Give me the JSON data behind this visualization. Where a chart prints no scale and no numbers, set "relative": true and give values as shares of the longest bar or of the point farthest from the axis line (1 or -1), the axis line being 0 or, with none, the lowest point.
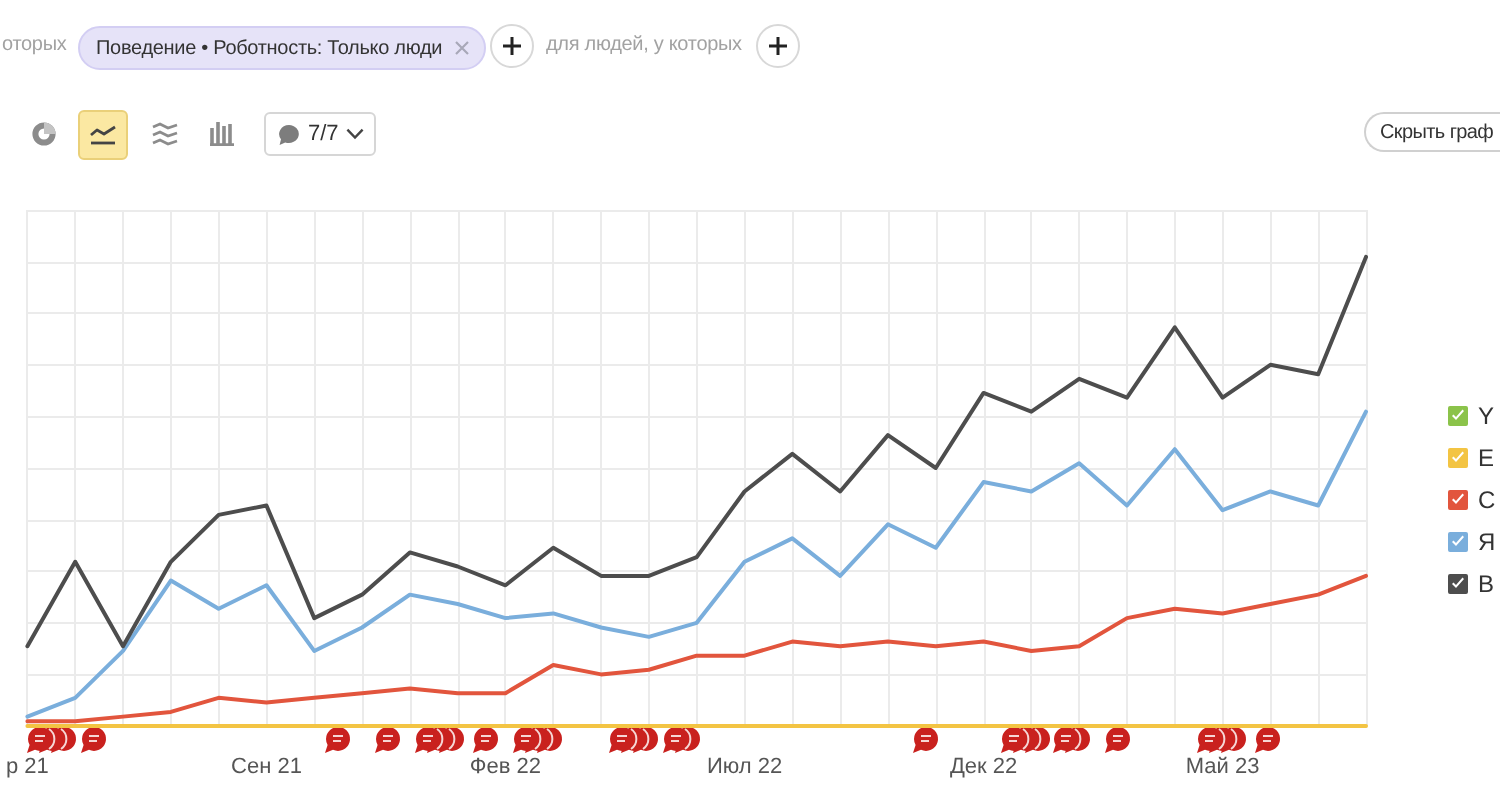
{
  "chart_data": {
    "type": "line",
    "relative": true,
    "categories": [
      "р 21",
      null,
      null,
      null,
      null,
      "Сен 21",
      null,
      null,
      null,
      null,
      "Фев 22",
      null,
      null,
      null,
      null,
      "Июл 22",
      null,
      null,
      null,
      null,
      "Дек 22",
      null,
      null,
      null,
      null,
      "Май 23",
      null,
      null,
      null
    ],
    "series": [
      {
        "name": "Y",
        "color": "#8bc34a",
        "values": [
          null,
          null,
          null,
          null,
          null,
          null,
          null,
          null,
          null,
          null,
          null,
          null,
          null,
          null,
          null,
          null,
          null,
          null,
          null,
          null,
          null,
          null,
          null,
          null,
          null,
          null,
          null,
          null,
          null
        ]
      },
      {
        "name": "E",
        "color": "#f3c443",
        "values": [
          0,
          0,
          0,
          0,
          0,
          0,
          0,
          0,
          0,
          0,
          0,
          0,
          0,
          0,
          0,
          0,
          0,
          0,
          0,
          0,
          0,
          0,
          0,
          0,
          0,
          0,
          0,
          0,
          0
        ]
      },
      {
        "name": "C",
        "color": "#e2553d",
        "values": [
          0.01,
          0.01,
          0.02,
          0.03,
          0.06,
          0.05,
          0.06,
          0.07,
          0.08,
          0.07,
          0.07,
          0.13,
          0.11,
          0.12,
          0.15,
          0.15,
          0.18,
          0.17,
          0.18,
          0.17,
          0.18,
          0.16,
          0.17,
          0.23,
          0.25,
          0.24,
          0.26,
          0.28,
          0.32
        ]
      },
      {
        "name": "Я",
        "color": "#7aaedc",
        "values": [
          0.02,
          0.06,
          0.16,
          0.31,
          0.25,
          0.3,
          0.16,
          0.21,
          0.28,
          0.26,
          0.23,
          0.24,
          0.21,
          0.19,
          0.22,
          0.35,
          0.4,
          0.32,
          0.43,
          0.38,
          0.52,
          0.5,
          0.56,
          0.47,
          0.59,
          0.46,
          0.5,
          0.47,
          0.67
        ]
      },
      {
        "name": "B",
        "color": "#4d4d4d",
        "values": [
          0.17,
          0.35,
          0.17,
          0.35,
          0.45,
          0.47,
          0.23,
          0.28,
          0.37,
          0.34,
          0.3,
          0.38,
          0.32,
          0.32,
          0.36,
          0.5,
          0.58,
          0.5,
          0.62,
          0.55,
          0.71,
          0.67,
          0.74,
          0.7,
          0.85,
          0.7,
          0.77,
          0.75,
          1
        ]
      }
    ],
    "grid": true,
    "legend": "right",
    "annotations": [
      "оторых",
      "Поведение • Роботность: Только люди",
      "для людей, у которых",
      "7/7",
      "Скрыть граф"
    ]
  }
}
